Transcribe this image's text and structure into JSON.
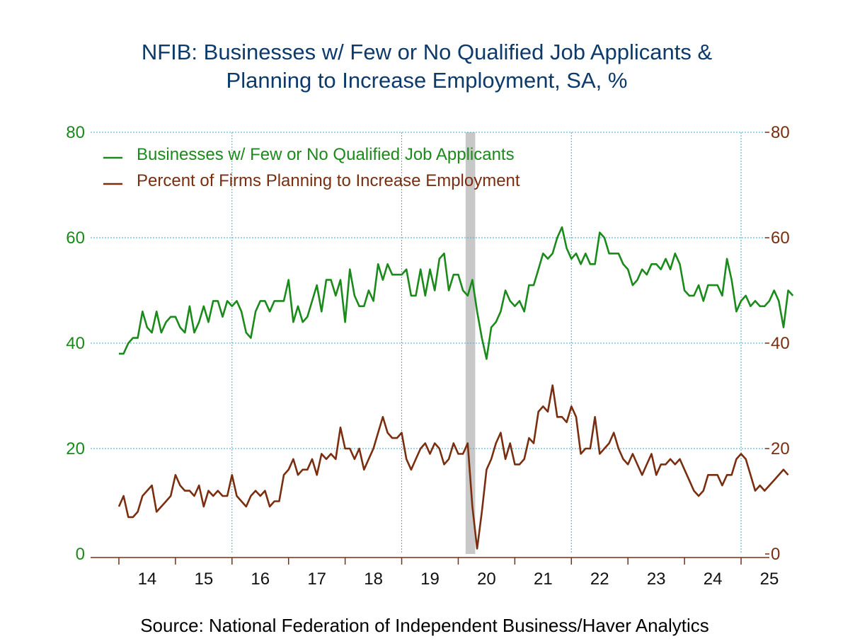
{
  "chart_data": {
    "type": "line",
    "title_lines": [
      "NFIB: Businesses w/ Few or No Qualified Job Applicants &",
      "Planning to Increase Employment, SA, %"
    ],
    "source": "Source:  National Federation of Independent Business/Haver Analytics",
    "x_tick_labels": [
      "14",
      "15",
      "16",
      "17",
      "18",
      "19",
      "20",
      "21",
      "22",
      "23",
      "24",
      "25"
    ],
    "x_range_years": [
      2013.5,
      2025.5
    ],
    "y_left": {
      "min": 0,
      "max": 80,
      "ticks": [
        "0",
        "20",
        "40",
        "60",
        "80"
      ],
      "color": "#1a8a1a"
    },
    "y_right": {
      "min": 0,
      "max": 80,
      "ticks": [
        "0",
        "20",
        "40",
        "60",
        "80"
      ],
      "color": "#7a2e10"
    },
    "grid": true,
    "recession_band": {
      "start": 2020.13,
      "end": 2020.3,
      "color": "#c8c8c8"
    },
    "legend_position": "top-left",
    "start_year": 2014,
    "series": [
      {
        "name": "Businesses w/ Few or No Qualified Job Applicants",
        "color": "#1a8a1a",
        "values": [
          38,
          38,
          40,
          41,
          41,
          46,
          43,
          42,
          46,
          42,
          44,
          45,
          45,
          43,
          42,
          47,
          42,
          44,
          47,
          44,
          48,
          48,
          45,
          48,
          47,
          48,
          46,
          42,
          41,
          46,
          48,
          48,
          46,
          48,
          48,
          48,
          52,
          44,
          47,
          44,
          45,
          48,
          51,
          46,
          52,
          52,
          49,
          52,
          44,
          54,
          49,
          47,
          47,
          50,
          48,
          55,
          52,
          55,
          53,
          53,
          53,
          54,
          49,
          49,
          54,
          49,
          54,
          50,
          56,
          57,
          50,
          53,
          53,
          50,
          49,
          52,
          46,
          41,
          37,
          43,
          44,
          46,
          50,
          48,
          47,
          48,
          46,
          51,
          51,
          54,
          57,
          56,
          57,
          60,
          62,
          58,
          56,
          57,
          55,
          57,
          55,
          55,
          61,
          60,
          57,
          57,
          57,
          55,
          54,
          51,
          52,
          54,
          53,
          55,
          55,
          54,
          56,
          54,
          57,
          55,
          50,
          49,
          49,
          51,
          48,
          51,
          51,
          51,
          49,
          56,
          52,
          46,
          48,
          49,
          47,
          48,
          47,
          47,
          48,
          50,
          48,
          43,
          50,
          49
        ]
      },
      {
        "name": "Percent of Firms Planning to Increase Employment",
        "color": "#7a2e10",
        "values": [
          9,
          11,
          7,
          7,
          8,
          11,
          12,
          13,
          8,
          9,
          10,
          11,
          15,
          13,
          12,
          12,
          11,
          13,
          9,
          12,
          11,
          12,
          11,
          11,
          15,
          11,
          10,
          9,
          11,
          12,
          11,
          12,
          9,
          10,
          10,
          15,
          16,
          18,
          15,
          16,
          16,
          18,
          15,
          19,
          18,
          19,
          18,
          24,
          20,
          20,
          18,
          20,
          16,
          18,
          20,
          23,
          26,
          23,
          22,
          22,
          23,
          18,
          16,
          18,
          20,
          21,
          19,
          21,
          20,
          17,
          18,
          21,
          19,
          19,
          21,
          9,
          1,
          8,
          16,
          18,
          21,
          23,
          18,
          21,
          17,
          17,
          18,
          22,
          21,
          27,
          28,
          27,
          32,
          26,
          26,
          25,
          28,
          26,
          19,
          20,
          20,
          26,
          19,
          20,
          21,
          23,
          20,
          18,
          17,
          19,
          17,
          15,
          17,
          19,
          15,
          17,
          17,
          18,
          17,
          18,
          16,
          14,
          12,
          11,
          12,
          15,
          15,
          15,
          13,
          15,
          15,
          18,
          19,
          18,
          15,
          12,
          13,
          12,
          13,
          14,
          15,
          16,
          15
        ]
      }
    ]
  }
}
